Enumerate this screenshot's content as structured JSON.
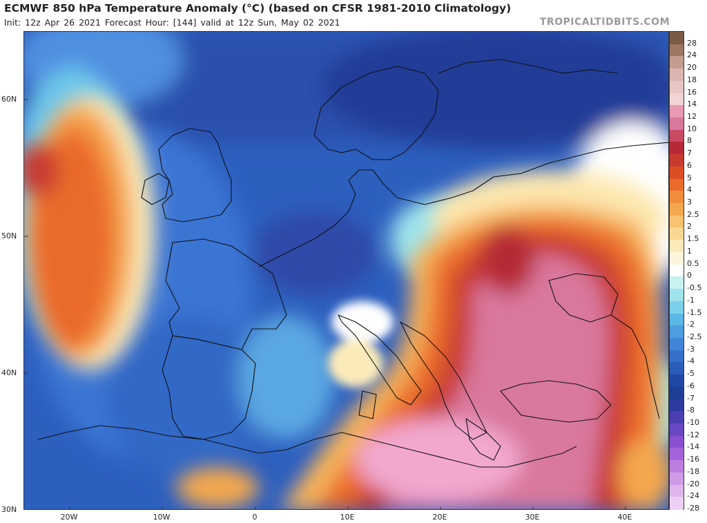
{
  "title": "ECMWF 850 hPa Temperature Anomaly (°C) (based on CFSR 1981-2010 Climatology)",
  "subtitle": "Init: 12z Apr 26 2021   Forecast Hour: [144]   valid at 12z Sun, May 02 2021",
  "brand": "TROPICALTIDBITS.COM",
  "lat_labels": [
    "60N",
    "50N",
    "40N",
    "30N"
  ],
  "lon_labels": [
    "20W",
    "10W",
    "0",
    "10E",
    "20E",
    "30E",
    "40E"
  ],
  "colorbar": {
    "levels": [
      "28",
      "24",
      "20",
      "18",
      "16",
      "14",
      "12",
      "10",
      "8",
      "7",
      "6",
      "5",
      "4",
      "3",
      "2.5",
      "2",
      "1.5",
      "1",
      "0.5",
      "0",
      "-0.5",
      "-1",
      "-1.5",
      "-2",
      "-2.5",
      "-3",
      "-4",
      "-5",
      "-6",
      "-7",
      "-8",
      "-10",
      "-12",
      "-14",
      "-16",
      "-18",
      "-20",
      "-24",
      "-28"
    ],
    "colors": [
      "#7a5a44",
      "#9e7561",
      "#c59c90",
      "#dcb4b0",
      "#e8c6c6",
      "#f1d4d4",
      "#e79ab1",
      "#d9789d",
      "#c94a63",
      "#b52a36",
      "#c83a30",
      "#dc4d26",
      "#ea6a2c",
      "#f08c3a",
      "#f4a84e",
      "#f8c272",
      "#fad894",
      "#fcebba",
      "#fdf6dc",
      "#ffffff",
      "#c8f2f2",
      "#9fe4ec",
      "#7dd0ea",
      "#5bb7e6",
      "#4d9de0",
      "#4185d8",
      "#356fcc",
      "#2b5bbb",
      "#2148a6",
      "#1e3d94",
      "#2e3a9e",
      "#4a3eb2",
      "#6a47c3",
      "#8a4fd0",
      "#a463d8",
      "#bd7ee0",
      "#d09be6",
      "#dfb5ec",
      "#ecd0f3"
    ]
  }
}
